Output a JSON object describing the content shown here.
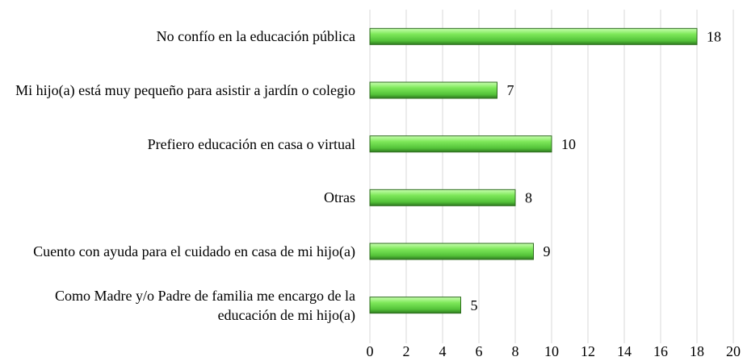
{
  "chart_data": {
    "type": "bar",
    "orientation": "horizontal",
    "categories": [
      "No confío en la educación pública",
      "Mi hijo(a) está muy pequeño para asistir a jardín o colegio",
      "Prefiero educación en casa o virtual",
      "Otras",
      "Cuento con ayuda para el cuidado en casa de mi hijo(a)",
      "Como Madre y/o Padre de familia me encargo de la educación de mi hijo(a)"
    ],
    "values": [
      18,
      7,
      10,
      8,
      9,
      5
    ],
    "color": "#66dd44",
    "xlim": [
      0,
      20
    ],
    "xticks": [
      0,
      2,
      4,
      6,
      8,
      10,
      12,
      14,
      16,
      18,
      20
    ],
    "grid": true
  }
}
